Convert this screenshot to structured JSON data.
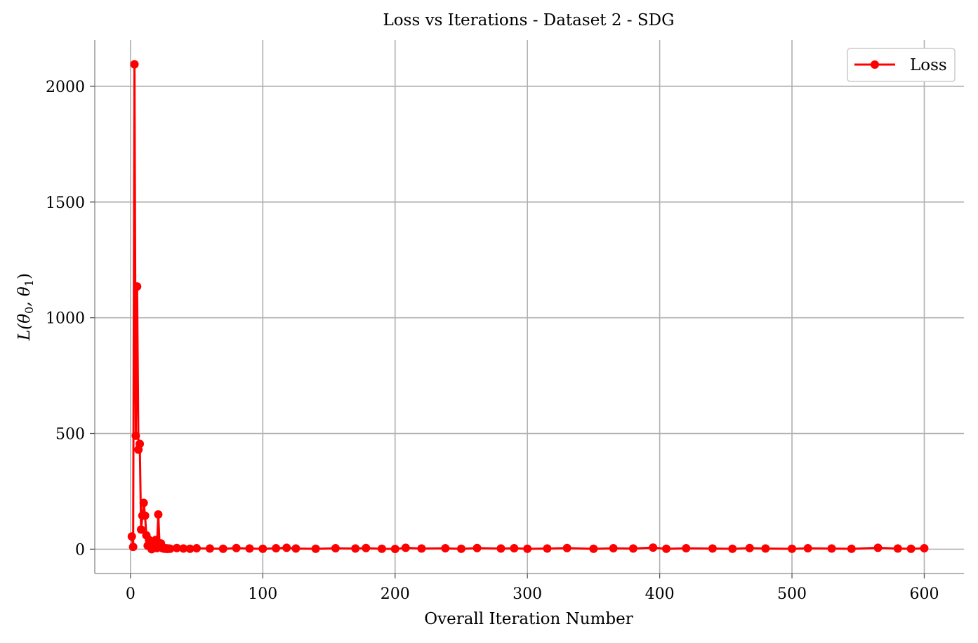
{
  "chart_data": {
    "type": "line",
    "title": "Loss vs Iterations - Dataset 2 - SDG",
    "xlabel": "Overall Iteration Number",
    "ylabel": "L(θ0, θ1)",
    "ylabel_main": "L(θ",
    "ylabel_sub0": "0",
    "ylabel_mid": ", θ",
    "ylabel_sub1": "1",
    "ylabel_end": ")",
    "xlim": [
      -27,
      630
    ],
    "ylim": [
      -105,
      2200
    ],
    "xticks": [
      0,
      100,
      200,
      300,
      400,
      500,
      600
    ],
    "yticks": [
      0,
      500,
      1000,
      1500,
      2000
    ],
    "grid": true,
    "legend_position": "top-right",
    "series": [
      {
        "name": "Loss",
        "color": "#ff0000",
        "marker": "circle",
        "x": [
          1,
          2,
          3,
          4,
          5,
          6,
          7,
          8,
          9,
          10,
          11,
          12,
          13,
          14,
          15,
          16,
          17,
          18,
          19,
          20,
          21,
          22,
          23,
          24,
          25,
          26,
          27,
          28,
          29,
          30,
          35,
          40,
          45,
          50,
          60,
          70,
          80,
          90,
          100,
          110,
          118,
          125,
          140,
          155,
          170,
          178,
          190,
          200,
          208,
          220,
          238,
          250,
          262,
          280,
          290,
          300,
          315,
          330,
          350,
          365,
          380,
          395,
          405,
          420,
          440,
          455,
          468,
          480,
          500,
          512,
          530,
          545,
          565,
          580,
          590,
          600
        ],
        "y": [
          55,
          10,
          2095,
          490,
          1135,
          430,
          455,
          85,
          145,
          200,
          145,
          60,
          15,
          40,
          10,
          0,
          25,
          10,
          40,
          5,
          150,
          15,
          25,
          5,
          3,
          2,
          4,
          1,
          3,
          2,
          5,
          3,
          2,
          4,
          3,
          2,
          5,
          3,
          2,
          4,
          6,
          3,
          2,
          4,
          3,
          5,
          2,
          1,
          6,
          3,
          4,
          2,
          5,
          3,
          4,
          2,
          3,
          5,
          2,
          4,
          3,
          7,
          2,
          4,
          3,
          2,
          5,
          3,
          2,
          4,
          3,
          2,
          6,
          3,
          2,
          4
        ]
      }
    ]
  }
}
